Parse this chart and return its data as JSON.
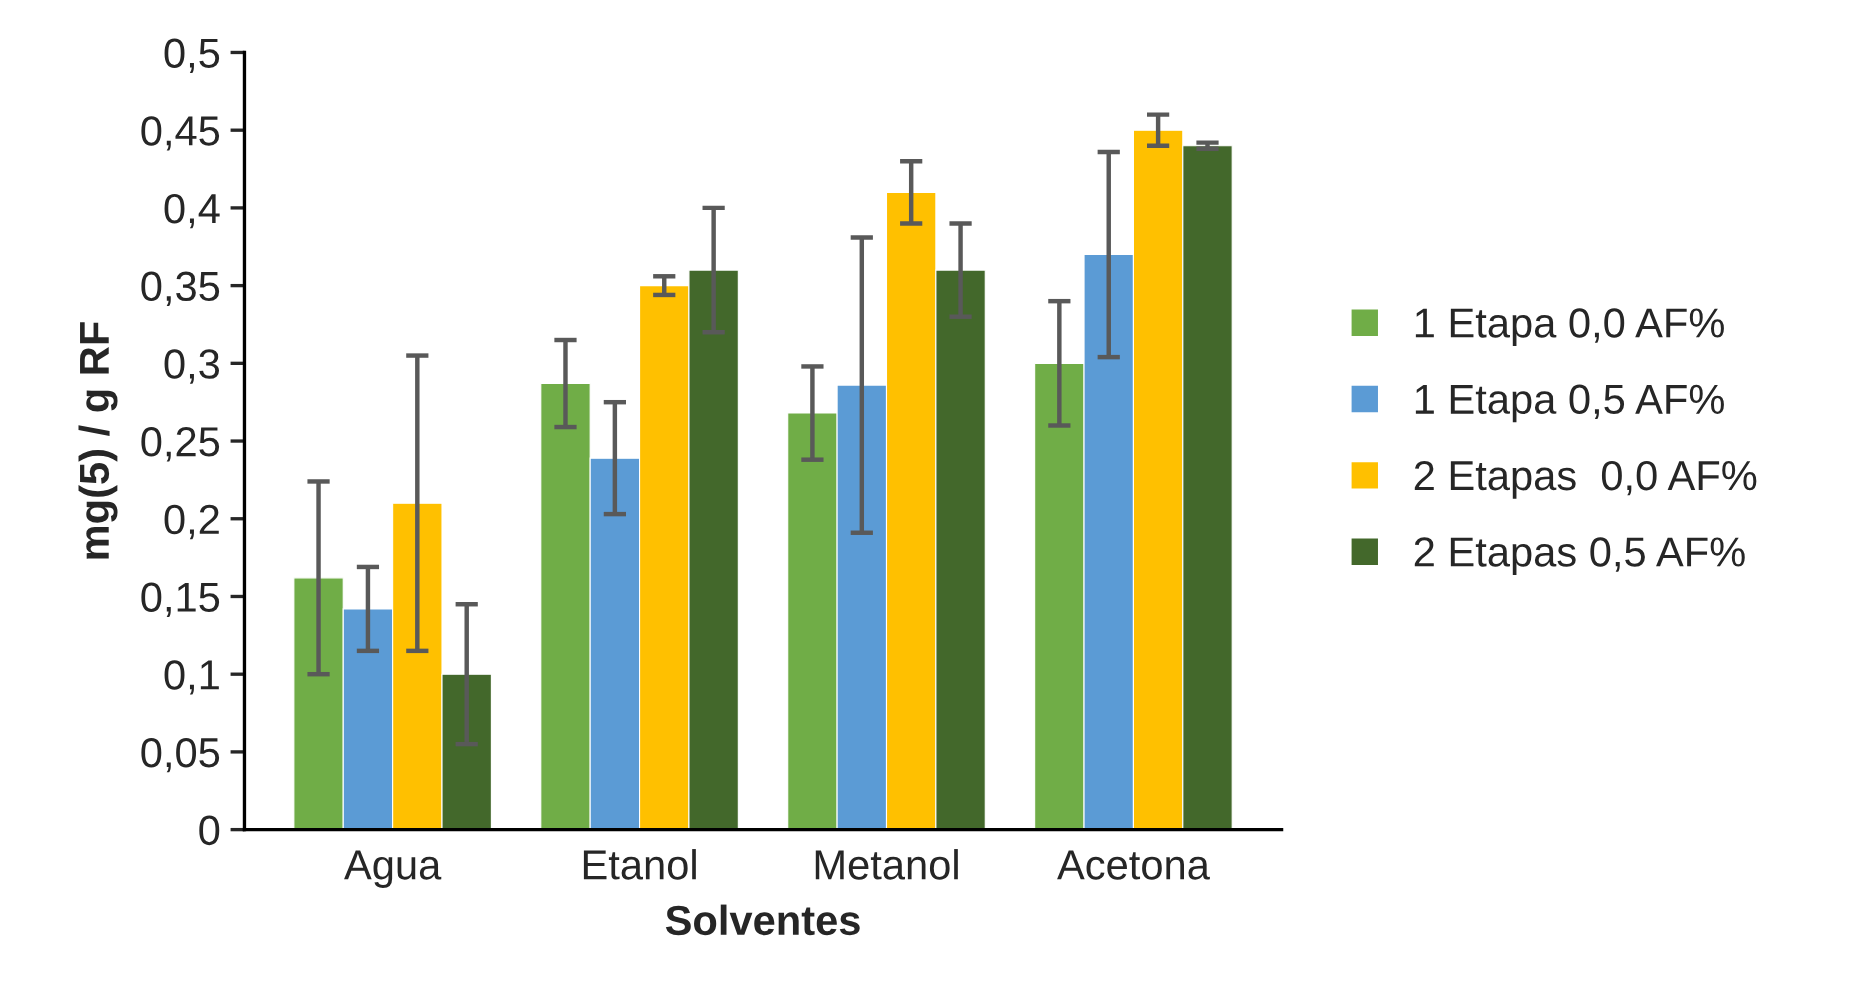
{
  "chart_data": {
    "type": "bar",
    "xlabel": "Solventes",
    "ylabel": "mg(5) / g RF",
    "categories": [
      "Agua",
      "Etanol",
      "Metanol",
      "Acetona"
    ],
    "series": [
      {
        "name": "1 Etapa 0,0 AF%",
        "color": "#70ad47",
        "values": [
          0.162,
          0.287,
          0.268,
          0.3
        ],
        "errors": [
          0.062,
          0.028,
          0.03,
          0.04
        ]
      },
      {
        "name": "1 Etapa 0,5 AF%",
        "color": "#5b9bd5",
        "values": [
          0.142,
          0.239,
          0.286,
          0.37
        ],
        "errors": [
          0.027,
          0.036,
          0.095,
          0.066
        ]
      },
      {
        "name": "2 Etapas  0,0 AF%",
        "color": "#ffc000",
        "values": [
          0.21,
          0.35,
          0.41,
          0.45
        ],
        "errors": [
          0.095,
          0.006,
          0.02,
          0.01
        ]
      },
      {
        "name": "2 Etapas 0,5 AF%",
        "color": "#43682b",
        "values": [
          0.1,
          0.36,
          0.36,
          0.44
        ],
        "errors": [
          0.045,
          0.04,
          0.03,
          0.002
        ]
      }
    ],
    "ylim": [
      0,
      0.5
    ],
    "yticks": [
      0,
      {
        "value": 0.05,
        "label": "0,05"
      },
      {
        "value": 0.1,
        "label": "0,1"
      },
      {
        "value": 0.15,
        "label": "0,15"
      },
      {
        "value": 0.2,
        "label": "0,2"
      },
      {
        "value": 0.25,
        "label": "0,25"
      },
      {
        "value": 0.3,
        "label": "0,3"
      },
      {
        "value": 0.35,
        "label": "0,35"
      },
      {
        "value": 0.4,
        "label": "0,4"
      },
      {
        "value": 0.45,
        "label": "0,45"
      },
      {
        "value": 0.5,
        "label": "0,5"
      }
    ],
    "grid": false,
    "legend": "right"
  }
}
